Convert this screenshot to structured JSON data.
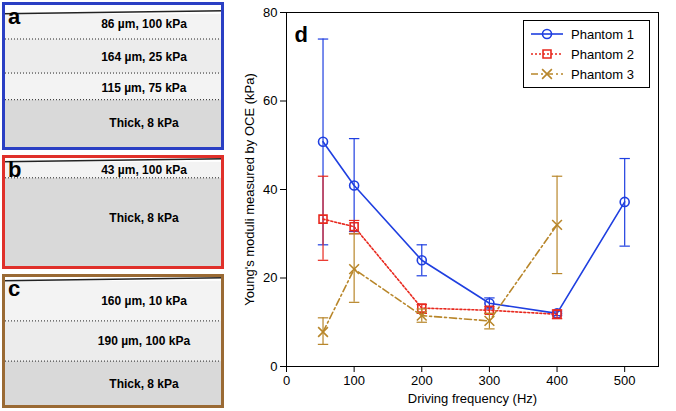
{
  "panels": [
    {
      "letter": "a",
      "color": "#2a3fc4",
      "layers": [
        "86 µm, 100 kPa",
        "164 µm, 25 kPa",
        "115 µm, 75 kPa",
        "Thick, 8 kPa"
      ]
    },
    {
      "letter": "b",
      "color": "#e0302a",
      "layers": [
        "43 µm, 100 kPa",
        "Thick, 8 kPa"
      ]
    },
    {
      "letter": "c",
      "color": "#9a6a34",
      "layers": [
        "160 µm, 10 kPa",
        "190 µm, 100 kPa",
        "Thick, 8 kPa"
      ]
    }
  ],
  "chart_data": {
    "type": "line",
    "panel_letter": "d",
    "xlabel": "Driving frequency (Hz)",
    "ylabel": "Young's moduli measured by OCE (kPa)",
    "xlim": [
      0,
      550
    ],
    "xticks": [
      0,
      100,
      200,
      300,
      400,
      500
    ],
    "ylim": [
      0,
      80
    ],
    "yticks": [
      0,
      20,
      40,
      60,
      80
    ],
    "legend": "upper right",
    "series": [
      {
        "name": "Phantom 1",
        "color": "#1f3fe0",
        "marker": "circle",
        "line_style": "solid",
        "x": [
          54,
          100,
          200,
          300,
          400,
          500
        ],
        "values": [
          50.8,
          40.9,
          24.0,
          14.3,
          12.0,
          37.2
        ],
        "error_low": [
          27.5,
          30.5,
          20.5,
          13.0,
          11.5,
          27.2
        ],
        "error_high": [
          74.0,
          51.5,
          27.5,
          15.5,
          12.5,
          47.0
        ]
      },
      {
        "name": "Phantom 2",
        "color": "#e8281e",
        "marker": "square",
        "line_style": "dotted",
        "x": [
          54,
          100,
          200,
          300,
          400
        ],
        "values": [
          33.3,
          31.6,
          13.2,
          12.7,
          11.8
        ],
        "error_low": [
          24.0,
          30.0,
          12.0,
          12.0,
          10.8
        ],
        "error_high": [
          43.0,
          33.0,
          14.0,
          13.5,
          12.8
        ]
      },
      {
        "name": "Phantom 3",
        "color": "#b8862a",
        "marker": "x",
        "line_style": "dashdot",
        "x": [
          54,
          100,
          200,
          300,
          400
        ],
        "values": [
          7.8,
          22.0,
          11.5,
          10.3,
          32.0
        ],
        "error_low": [
          5.0,
          14.5,
          10.0,
          8.5,
          21.0
        ],
        "error_high": [
          11.0,
          30.0,
          13.0,
          12.0,
          43.0
        ]
      }
    ]
  }
}
